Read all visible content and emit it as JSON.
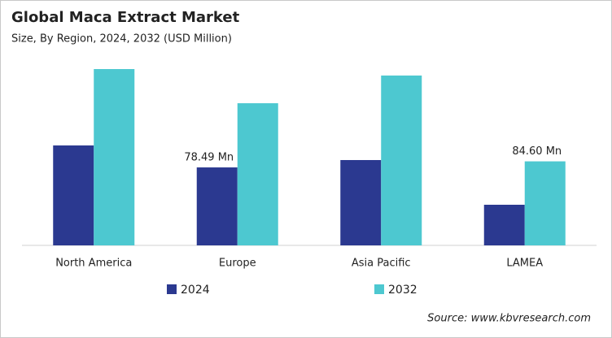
{
  "chart_data": {
    "type": "bar",
    "title": "Global Maca Extract Market",
    "subtitle": "Size, By Region, 2024, 2032 (USD Million)",
    "categories": [
      "North America",
      "Europe",
      "Asia Pacific",
      "LAMEA"
    ],
    "series": [
      {
        "name": "2024",
        "color": "#2b3990",
        "values": [
          100.6,
          78.49,
          85.9,
          40.9
        ],
        "value_labels": [
          null,
          "78.49 Mn",
          null,
          null
        ]
      },
      {
        "name": "2032",
        "color": "#4dc8d0",
        "values": [
          177.5,
          143.1,
          171.0,
          84.6
        ],
        "value_labels": [
          null,
          null,
          null,
          "84.60 Mn"
        ]
      }
    ],
    "source": "Source: www.kbvresearch.com"
  }
}
